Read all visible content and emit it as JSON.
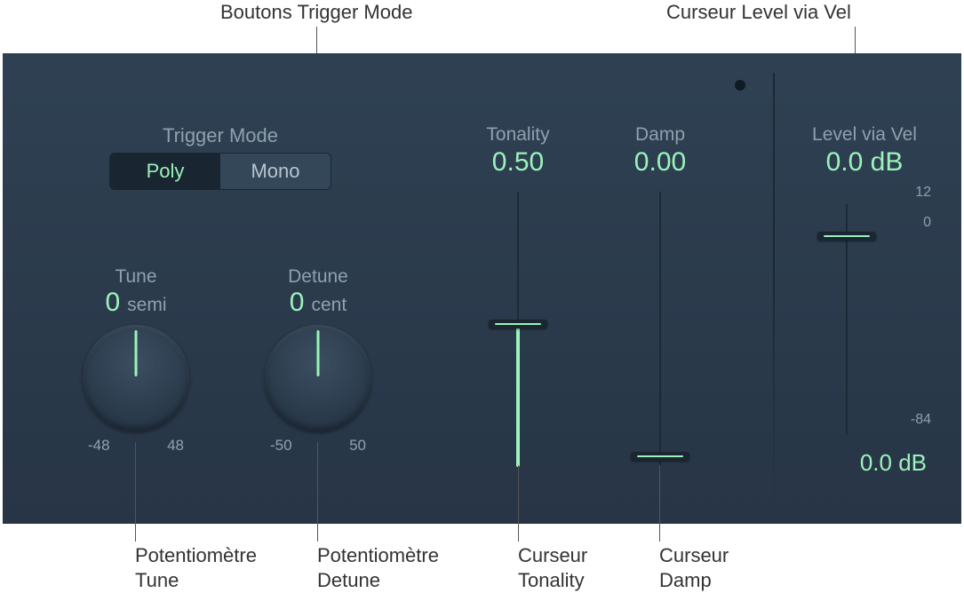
{
  "colors": {
    "panel_bg_top": "#2e4152",
    "panel_bg_bottom": "#273546",
    "label_muted": "#8da1af",
    "accent": "#9bf2bb",
    "track": "#1d2a36",
    "seg_active_bg": "#192531",
    "seg_inactive_bg": "#334759",
    "callout": "#333333"
  },
  "typography": {
    "callout_fontsize_pt": 17,
    "label_fontsize_pt": 16,
    "value_fontsize_pt": 22,
    "scale_fontsize_pt": 12
  },
  "callouts": {
    "top_trigger": "Boutons Trigger Mode",
    "top_level": "Curseur Level via Vel",
    "tune": "Potentiomètre Tune",
    "detune": "Potentiomètre Detune",
    "tonality": "Curseur Tonality",
    "damp": "Curseur Damp"
  },
  "trigger": {
    "label": "Trigger Mode",
    "poly": "Poly",
    "mono": "Mono",
    "active": "poly"
  },
  "tune": {
    "label": "Tune",
    "value": "0",
    "unit": "semi",
    "min": "-48",
    "max": "48"
  },
  "detune": {
    "label": "Detune",
    "value": "0",
    "unit": "cent",
    "min": "-50",
    "max": "50"
  },
  "tonality": {
    "label": "Tonality",
    "value": "0.50",
    "fill_from_bottom_pct": 0,
    "thumb_pct_from_top": 48
  },
  "damp": {
    "label": "Damp",
    "value": "0.00",
    "thumb_pct_from_top": 96
  },
  "level": {
    "label": "Level via Vel",
    "value": "0.0 dB",
    "scale_top": "12",
    "scale_mid": "0",
    "scale_bottom": "-84",
    "readout": "0.0 dB",
    "thumb_pct_from_top": 14
  }
}
